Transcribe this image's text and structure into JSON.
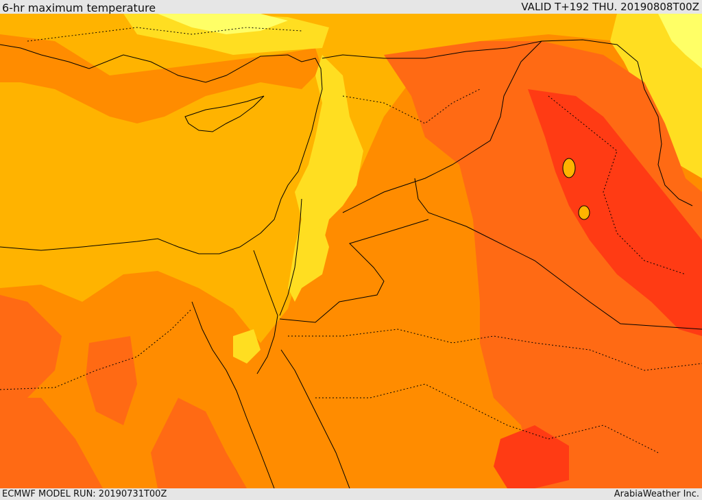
{
  "header": {
    "title": "6-hr maximum temperature",
    "valid": "VALID T+192 THU. 20190808T00Z"
  },
  "footer": {
    "model_run": "ECMWF MODEL RUN: 20190731T00Z",
    "credit": "ArabiaWeather Inc."
  },
  "colors": {
    "pale_yellow": "#ffff66",
    "yellow": "#ffde21",
    "gold": "#ffb300",
    "orange": "#ff8c00",
    "dark_orange": "#ff6a14",
    "red": "#ff3b14",
    "border_line": "#000000"
  }
}
